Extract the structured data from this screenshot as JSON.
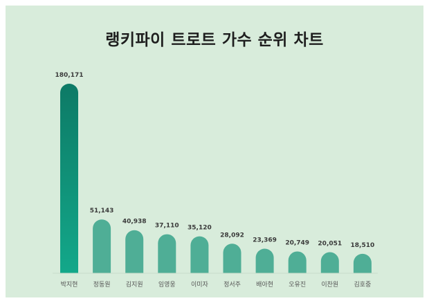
{
  "chart_data": {
    "type": "bar",
    "title": "랭키파이 트로트 가수 순위 차트",
    "categories": [
      "박지현",
      "정동원",
      "김지원",
      "임영웅",
      "이미자",
      "정서주",
      "배아현",
      "오유진",
      "이찬원",
      "김호중"
    ],
    "values": [
      180171,
      51143,
      40938,
      37110,
      35120,
      28092,
      23369,
      20749,
      20051,
      18510
    ],
    "value_labels": [
      "180,171",
      "51,143",
      "40,938",
      "37,110",
      "35,120",
      "28,092",
      "23,369",
      "20,749",
      "20,051",
      "18,510"
    ],
    "xlabel": "",
    "ylabel": "",
    "ylim": [
      0,
      180171
    ],
    "grid": false,
    "legend": "none"
  },
  "colors": {
    "background": "#d8ecdb",
    "first_bar_top": "#0d7a66",
    "first_bar_bottom": "#13a88a",
    "bar": "#4fae96",
    "baseline": "#c9dccb"
  }
}
